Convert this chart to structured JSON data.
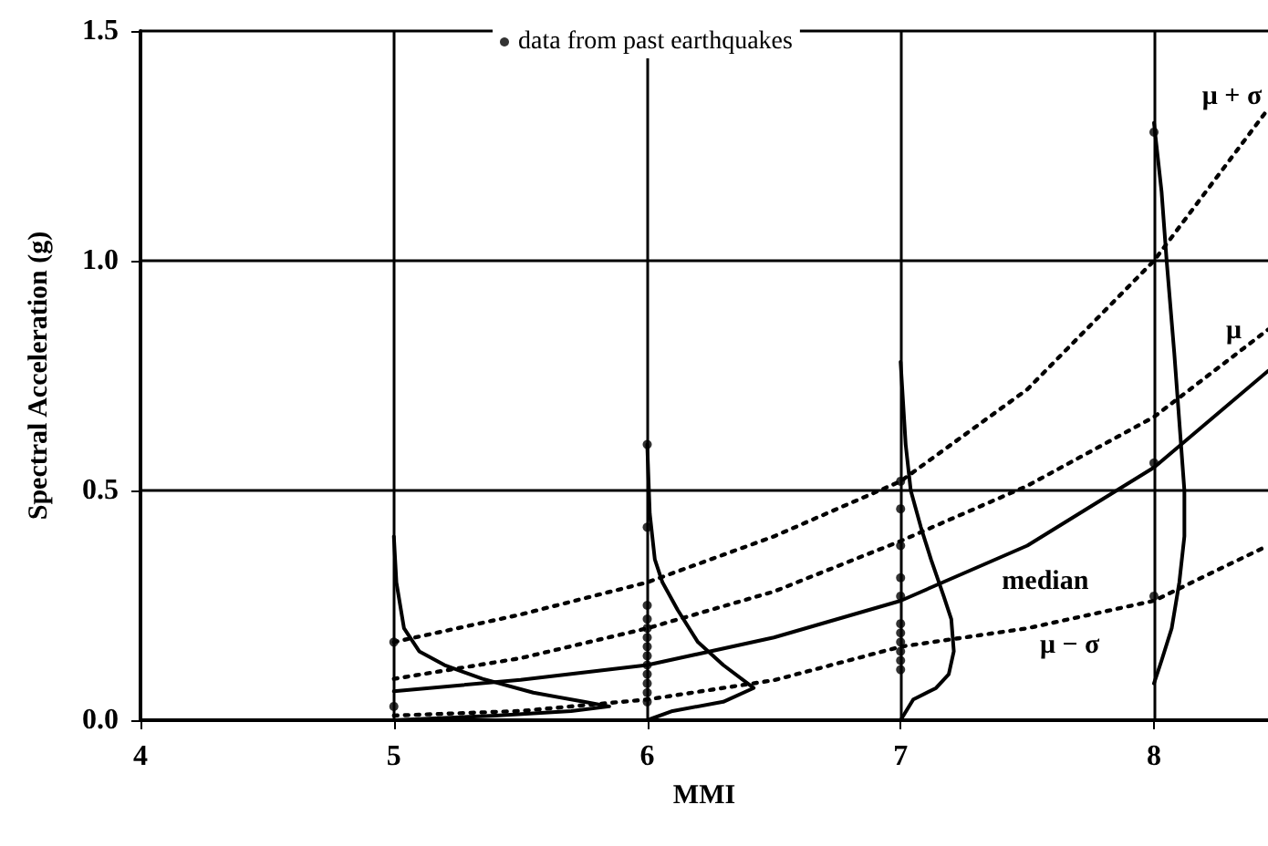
{
  "chart_data": {
    "type": "line",
    "xlabel": "MMI",
    "ylabel": "Spectral Acceleration (g)",
    "xlim": [
      4,
      8.45
    ],
    "xticks": [
      4,
      5,
      6,
      7,
      8
    ],
    "ylim": [
      0,
      1.5
    ],
    "yticks": [
      {
        "value": 0,
        "label": "0.0"
      },
      {
        "value": 0.5,
        "label": "0.5"
      },
      {
        "value": 1,
        "label": "1.0"
      },
      {
        "value": 1.5,
        "label": "1.5"
      }
    ],
    "grid": true,
    "legend": "top",
    "series": [
      {
        "type": "scatter",
        "name": "data from past earthquakes",
        "color": "#000000",
        "marker": "circle",
        "x": [
          5,
          5,
          6,
          6,
          6,
          6,
          6,
          6,
          6,
          6,
          6,
          6,
          6,
          6,
          6,
          7,
          7,
          7,
          7,
          7,
          7,
          7,
          7,
          7,
          7,
          7,
          8,
          8,
          8
        ],
        "values": [
          0.17,
          0.03,
          0.6,
          0.42,
          0.25,
          0.22,
          0.2,
          0.18,
          0.16,
          0.14,
          0.12,
          0.1,
          0.08,
          0.06,
          0.04,
          0.52,
          0.46,
          0.38,
          0.31,
          0.27,
          0.21,
          0.19,
          0.17,
          0.15,
          0.13,
          0.11,
          1.28,
          0.56,
          0.27
        ]
      },
      {
        "color": "#000000",
        "line_style": "solid",
        "x": [
          5,
          5.5,
          6,
          6.5,
          7,
          7.5,
          8,
          8.45
        ],
        "values": [
          0.063,
          0.088,
          0.12,
          0.18,
          0.26,
          0.38,
          0.55,
          0.76
        ]
      },
      {
        "color": "#000000",
        "line_style": "dotted",
        "x": [
          5,
          5.5,
          6,
          6.5,
          7,
          7.5,
          8,
          8.45
        ],
        "values": [
          0.09,
          0.135,
          0.2,
          0.28,
          0.39,
          0.51,
          0.66,
          0.85
        ]
      },
      {
        "color": "#000000",
        "line_style": "dotted",
        "x": [
          5,
          5.5,
          6,
          6.5,
          7,
          7.5,
          8,
          8.45
        ],
        "values": [
          0.17,
          0.23,
          0.3,
          0.4,
          0.52,
          0.72,
          1.0,
          1.33
        ]
      },
      {
        "color": "#000000",
        "line_style": "dotted",
        "x": [
          5,
          5.5,
          6,
          6.5,
          7,
          7.5,
          8,
          8.45
        ],
        "values": [
          0.01,
          0.02,
          0.045,
          0.087,
          0.16,
          0.2,
          0.26,
          0.38
        ]
      },
      {
        "color": "#000000",
        "line_style": "solid",
        "x": [
          5,
          5.01,
          5.04,
          5.1,
          5.2,
          5.35,
          5.55,
          5.75,
          5.85,
          5.7,
          5.4,
          5
        ],
        "values": [
          0.4,
          0.3,
          0.2,
          0.15,
          0.12,
          0.09,
          0.06,
          0.04,
          0.03,
          0.02,
          0.01,
          0
        ]
      },
      {
        "color": "#000000",
        "line_style": "solid",
        "x": [
          6,
          6.01,
          6.03,
          6.06,
          6.12,
          6.2,
          6.3,
          6.42,
          6.3,
          6.1,
          6
        ],
        "values": [
          0.6,
          0.45,
          0.35,
          0.3,
          0.24,
          0.17,
          0.12,
          0.07,
          0.04,
          0.02,
          0
        ]
      },
      {
        "color": "#000000",
        "line_style": "solid",
        "x": [
          7,
          7.02,
          7.04,
          7.08,
          7.12,
          7.17,
          7.2,
          7.21,
          7.19,
          7.14,
          7.05,
          7
        ],
        "values": [
          0.78,
          0.6,
          0.5,
          0.42,
          0.35,
          0.27,
          0.22,
          0.15,
          0.1,
          0.07,
          0.045,
          0
        ]
      },
      {
        "color": "#000000",
        "line_style": "solid",
        "x": [
          8,
          8.03,
          8.05,
          8.08,
          8.1,
          8.12,
          8.12,
          8.1,
          8.07,
          8.03,
          8
        ],
        "values": [
          1.3,
          1.15,
          1,
          0.8,
          0.65,
          0.5,
          0.4,
          0.3,
          0.2,
          0.13,
          0.08
        ]
      }
    ],
    "annotations": [
      {
        "text": "μ + σ",
        "x": 8.44,
        "y": 1.32
      },
      {
        "text": "μ",
        "x": 8.36,
        "y": 0.81
      },
      {
        "text": "median",
        "x": 7.4,
        "y": 0.34
      },
      {
        "text": "μ − σ",
        "x": 7.55,
        "y": 0.2
      }
    ]
  }
}
